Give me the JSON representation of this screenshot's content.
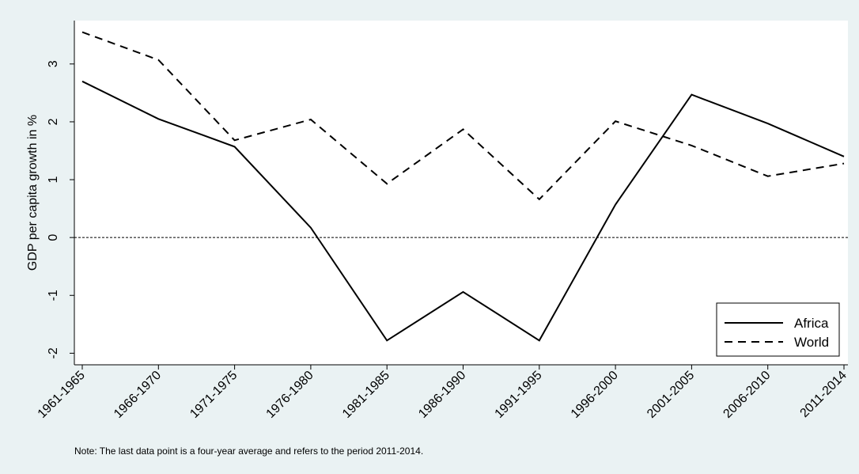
{
  "chart_data": {
    "type": "line",
    "ylabel": "GDP per capita growth in %",
    "xlabel": "",
    "categories": [
      "1961-1965",
      "1966-1970",
      "1971-1975",
      "1976-1980",
      "1981-1985",
      "1986-1990",
      "1991-1995",
      "1996-2000",
      "2001-2005",
      "2006-2010",
      "2011-2014"
    ],
    "series": [
      {
        "name": "Africa",
        "style": "solid",
        "color": "#000000",
        "values": [
          2.7,
          2.05,
          1.57,
          0.17,
          -1.78,
          -0.94,
          -1.78,
          0.57,
          2.47,
          1.97,
          1.4
        ]
      },
      {
        "name": "World",
        "style": "dashed",
        "color": "#000000",
        "values": [
          3.55,
          3.07,
          1.68,
          2.04,
          0.93,
          1.87,
          0.66,
          2.01,
          1.59,
          1.06,
          1.28
        ]
      }
    ],
    "ylim": [
      -2.2,
      3.75
    ],
    "yticks": [
      -2,
      -1,
      0,
      1,
      2,
      3
    ],
    "reference_line": 0,
    "grid": false,
    "legend_position": "bottom-right",
    "plot_background": "#ffffff",
    "figure_background": "#eaf2f3"
  },
  "note": "Note: The last data point is a four-year average and refers to the period 2011-2014."
}
